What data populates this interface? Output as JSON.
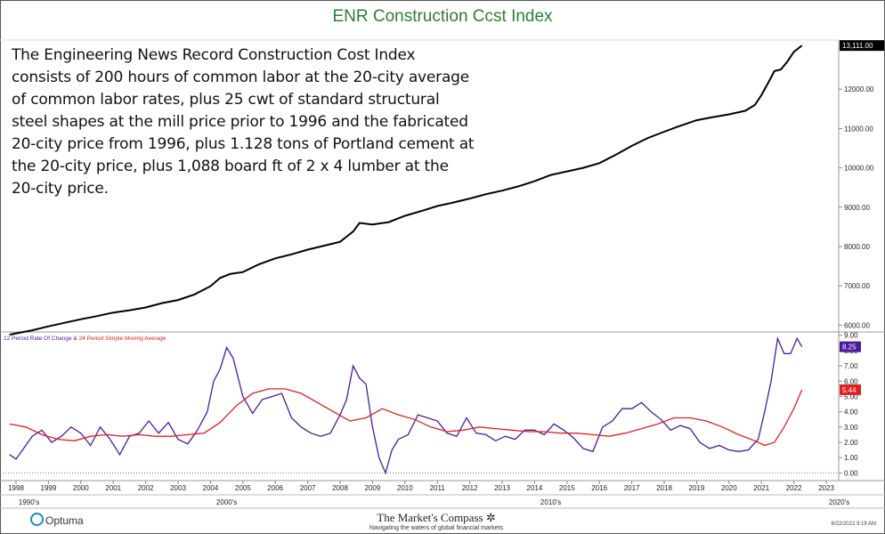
{
  "chart_data": [
    {
      "type": "line",
      "title": "ENR Construction Ccst Index",
      "description": "The Engineering News Record Construction Cost Index consists of 200 hours of common labor at the 20-city average of common labor rates, plus 25 cwt of standard structural steel shapes at the mill price prior to 1996 and the fabricated 20-city price from 1996, plus 1.128 tons of Portland cement at the 20-city price, plus 1,088 board ft of 2 x 4 lumber at the 20-city price.",
      "ylim": [
        5850,
        13250
      ],
      "y_ticks": [
        "6000.00",
        "7000.00",
        "8000.00",
        "9000.00",
        "10000.00",
        "11000.00",
        "12000.00"
      ],
      "last_value_label": "13,111.00",
      "series": [
        {
          "color": "#000000",
          "x": [
            1997.8,
            1998.5,
            1999.0,
            1999.5,
            2000.0,
            2000.5,
            2001.0,
            2001.5,
            2002.0,
            2002.5,
            2003.0,
            2003.5,
            2004.0,
            2004.3,
            2004.6,
            2005.0,
            2005.5,
            2006.0,
            2006.5,
            2007.0,
            2007.5,
            2008.0,
            2008.2,
            2008.4,
            2008.6,
            2009.0,
            2009.5,
            2010.0,
            2010.5,
            2011.0,
            2011.5,
            2012.0,
            2012.5,
            2013.0,
            2013.5,
            2014.0,
            2014.5,
            2015.0,
            2015.5,
            2016.0,
            2016.5,
            2017.0,
            2017.5,
            2018.0,
            2018.5,
            2019.0,
            2019.5,
            2020.0,
            2020.5,
            2020.8,
            2021.0,
            2021.2,
            2021.4,
            2021.6,
            2021.8,
            2022.0,
            2022.25
          ],
          "values": [
            5760,
            5870,
            5970,
            6060,
            6150,
            6230,
            6320,
            6380,
            6450,
            6560,
            6640,
            6780,
            6990,
            7200,
            7300,
            7350,
            7550,
            7700,
            7800,
            7920,
            8020,
            8120,
            8250,
            8380,
            8600,
            8560,
            8620,
            8780,
            8900,
            9030,
            9120,
            9220,
            9330,
            9420,
            9530,
            9660,
            9820,
            9910,
            10000,
            10120,
            10330,
            10560,
            10760,
            10920,
            11070,
            11210,
            11290,
            11360,
            11450,
            11600,
            11850,
            12150,
            12460,
            12500,
            12700,
            12950,
            13111
          ]
        }
      ]
    },
    {
      "type": "line",
      "legend": [
        "12 Period Rate Of Change",
        "24 Period Simple Moving Average"
      ],
      "ylim": [
        -0.5,
        9.1
      ],
      "y_ticks": [
        "0.00",
        "1.00",
        "2.00",
        "3.00",
        "4.00",
        "5.00",
        "6.00",
        "7.00",
        "8.00",
        "9.00"
      ],
      "last_value_labels": [
        "8.25",
        "5.44"
      ],
      "x_ticks": [
        "1998",
        "1999",
        "2000",
        "2001",
        "2002",
        "2003",
        "2004",
        "2005",
        "2006",
        "2007",
        "2008",
        "2009",
        "2010",
        "2011",
        "2012",
        "2013",
        "2014",
        "2015",
        "2016",
        "2017",
        "2018",
        "2019",
        "2020",
        "2021",
        "2022",
        "2023"
      ],
      "decade_labels": [
        "1990's",
        "2000's",
        "2010's",
        "2020's"
      ],
      "series": [
        {
          "name": "12 Period Rate Of Change",
          "color": "#4a1a9e",
          "x": [
            1997.8,
            1998.0,
            1998.2,
            1998.5,
            1998.8,
            1999.1,
            1999.4,
            1999.7,
            2000.0,
            2000.3,
            2000.6,
            2000.9,
            2001.2,
            2001.5,
            2001.8,
            2002.1,
            2002.4,
            2002.7,
            2003.0,
            2003.3,
            2003.6,
            2003.9,
            2004.1,
            2004.3,
            2004.5,
            2004.7,
            2005.0,
            2005.3,
            2005.6,
            2005.9,
            2006.2,
            2006.5,
            2006.8,
            2007.1,
            2007.4,
            2007.7,
            2008.0,
            2008.2,
            2008.4,
            2008.6,
            2008.8,
            2009.0,
            2009.2,
            2009.4,
            2009.6,
            2009.8,
            2010.1,
            2010.4,
            2010.7,
            2011.0,
            2011.3,
            2011.6,
            2011.9,
            2012.2,
            2012.5,
            2012.8,
            2013.1,
            2013.4,
            2013.7,
            2014.0,
            2014.3,
            2014.6,
            2014.9,
            2015.2,
            2015.5,
            2015.8,
            2016.1,
            2016.4,
            2016.7,
            2017.0,
            2017.3,
            2017.6,
            2017.9,
            2018.2,
            2018.5,
            2018.8,
            2019.1,
            2019.4,
            2019.7,
            2020.0,
            2020.3,
            2020.6,
            2020.9,
            2021.1,
            2021.3,
            2021.5,
            2021.7,
            2021.9,
            2022.1,
            2022.25
          ],
          "values": [
            1.2,
            0.9,
            1.5,
            2.4,
            2.8,
            2.0,
            2.4,
            3.0,
            2.6,
            1.8,
            3.0,
            2.2,
            1.2,
            2.4,
            2.6,
            3.4,
            2.6,
            3.3,
            2.2,
            1.9,
            2.8,
            4.0,
            6.0,
            6.8,
            8.2,
            7.5,
            5.0,
            3.9,
            4.8,
            5.0,
            5.2,
            3.6,
            3.0,
            2.6,
            2.4,
            2.6,
            3.8,
            4.8,
            7.0,
            6.2,
            5.8,
            3.0,
            1.0,
            0.0,
            1.5,
            2.2,
            2.5,
            3.8,
            3.6,
            3.4,
            2.6,
            2.4,
            3.6,
            2.6,
            2.5,
            2.1,
            2.4,
            2.2,
            2.8,
            2.8,
            2.5,
            3.2,
            2.8,
            2.3,
            1.6,
            1.4,
            3.0,
            3.4,
            4.2,
            4.2,
            4.6,
            4.0,
            3.5,
            2.8,
            3.1,
            2.9,
            2.0,
            1.6,
            1.8,
            1.5,
            1.4,
            1.5,
            2.2,
            4.0,
            6.0,
            8.8,
            7.8,
            7.8,
            8.8,
            8.25
          ]
        },
        {
          "name": "24 Period Simple Moving Average",
          "color": "#e02020",
          "x": [
            1997.8,
            1998.3,
            1998.8,
            1999.3,
            1999.8,
            2000.3,
            2000.8,
            2001.3,
            2001.8,
            2002.3,
            2002.8,
            2003.3,
            2003.8,
            2004.3,
            2004.8,
            2005.3,
            2005.8,
            2006.3,
            2006.8,
            2007.3,
            2007.8,
            2008.3,
            2008.8,
            2009.3,
            2009.8,
            2010.3,
            2010.8,
            2011.3,
            2011.8,
            2012.3,
            2012.8,
            2013.3,
            2013.8,
            2014.3,
            2014.8,
            2015.3,
            2015.8,
            2016.3,
            2016.8,
            2017.3,
            2017.8,
            2018.3,
            2018.8,
            2019.3,
            2019.8,
            2020.3,
            2020.8,
            2021.1,
            2021.4,
            2021.7,
            2022.0,
            2022.25
          ],
          "values": [
            3.2,
            3.0,
            2.5,
            2.2,
            2.1,
            2.4,
            2.5,
            2.4,
            2.5,
            2.4,
            2.4,
            2.5,
            2.6,
            3.3,
            4.4,
            5.2,
            5.5,
            5.5,
            5.2,
            4.6,
            4.0,
            3.4,
            3.6,
            4.2,
            3.8,
            3.5,
            3.0,
            2.7,
            2.8,
            3.0,
            2.9,
            2.8,
            2.7,
            2.7,
            2.6,
            2.6,
            2.5,
            2.4,
            2.6,
            2.9,
            3.2,
            3.6,
            3.6,
            3.4,
            3.0,
            2.5,
            2.1,
            1.8,
            2.0,
            3.0,
            4.2,
            5.44
          ]
        }
      ]
    }
  ],
  "footer": {
    "optuma": "Optuma",
    "brand": "The Market's Compass",
    "tagline": "Navigating the waters of global financial markets",
    "timestamp": "6/22/2022 9:19 AM"
  }
}
